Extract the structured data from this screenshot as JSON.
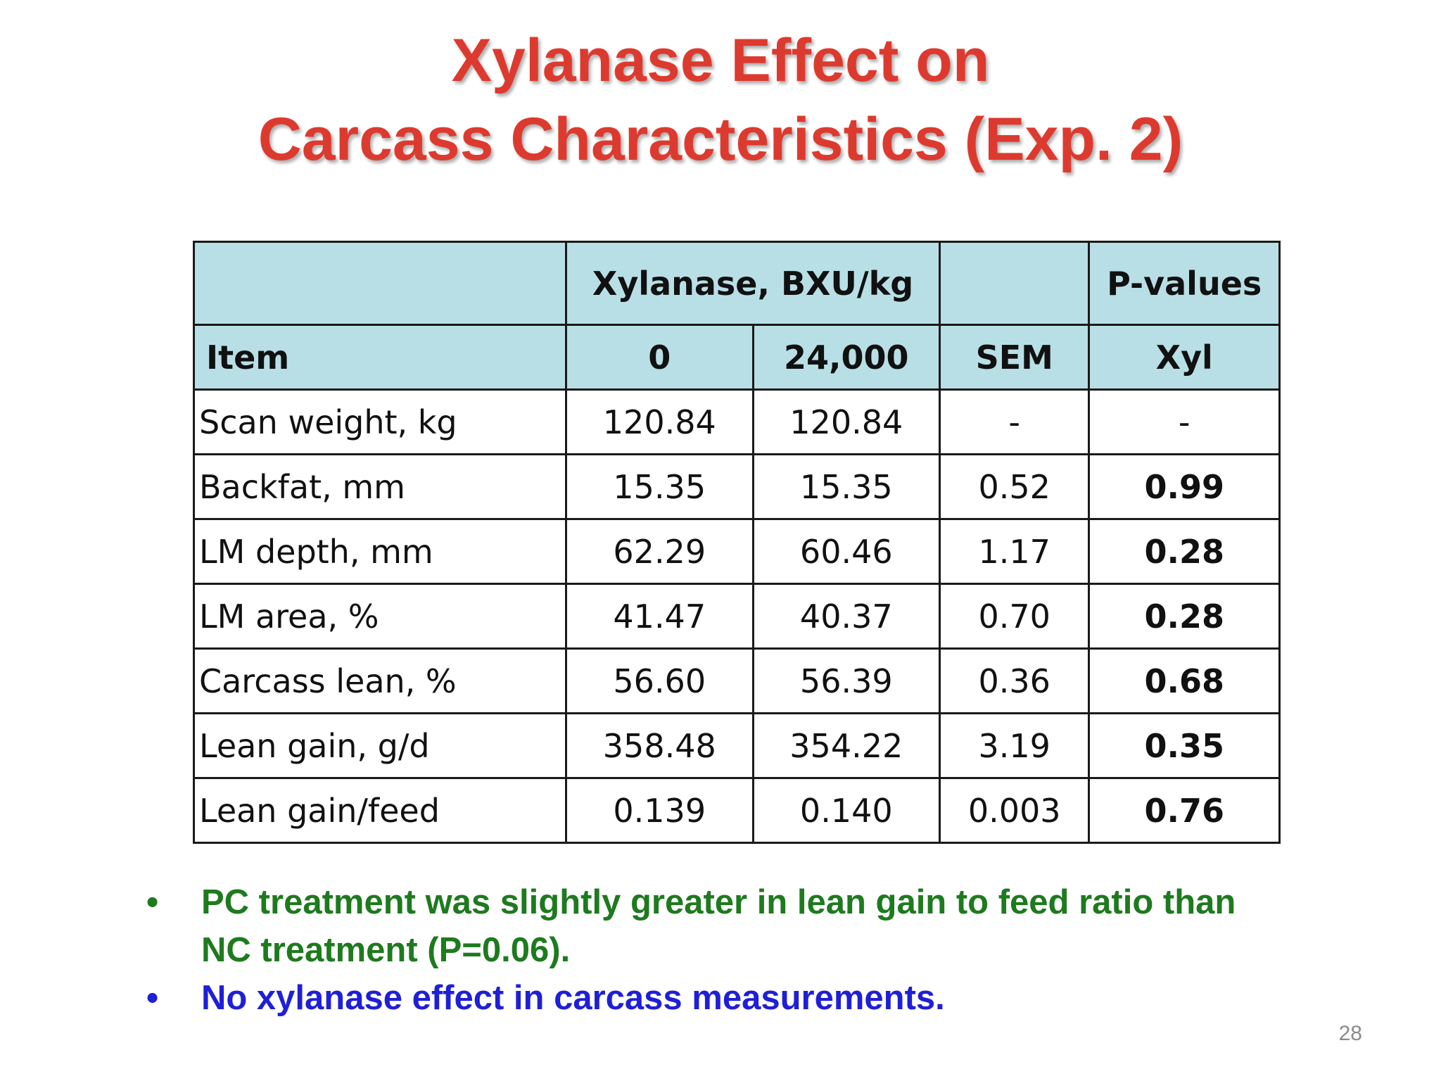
{
  "slide": {
    "title_line1": "Xylanase Effect on",
    "title_line2": "Carcass Characteristics (Exp. 2)",
    "page_number": "28"
  },
  "table": {
    "header_row1": {
      "group_xylanase": "Xylanase, BXU/kg",
      "group_pvalues": "P-values"
    },
    "header_row2": {
      "item": "Item",
      "dose_0": "0",
      "dose_24000": "24,000",
      "sem": "SEM",
      "xyl": "Xyl"
    },
    "rows": [
      {
        "item": "Scan weight, kg",
        "dose_0": "120.84",
        "dose_24000": "120.84",
        "sem": "-",
        "xyl": "-"
      },
      {
        "item": "Backfat, mm",
        "dose_0": "15.35",
        "dose_24000": "15.35",
        "sem": "0.52",
        "xyl": "0.99"
      },
      {
        "item": "LM depth, mm",
        "dose_0": "62.29",
        "dose_24000": "60.46",
        "sem": "1.17",
        "xyl": "0.28"
      },
      {
        "item": "LM area, %",
        "dose_0": "41.47",
        "dose_24000": "40.37",
        "sem": "0.70",
        "xyl": "0.28"
      },
      {
        "item": "Carcass lean, %",
        "dose_0": "56.60",
        "dose_24000": "56.39",
        "sem": "0.36",
        "xyl": "0.68"
      },
      {
        "item": "Lean gain, g/d",
        "dose_0": "358.48",
        "dose_24000": "354.22",
        "sem": "3.19",
        "xyl": "0.35"
      },
      {
        "item": "Lean gain/feed",
        "dose_0": "0.139",
        "dose_24000": "0.140",
        "sem": "0.003",
        "xyl": "0.76"
      }
    ]
  },
  "bullets": [
    {
      "marker": "•",
      "text": "PC treatment was slightly greater in lean gain to feed ratio than NC treatment (P=0.06).",
      "color": "#1e7a1e"
    },
    {
      "marker": "•",
      "text": "No xylanase effect in carcass measurements.",
      "color": "#1f1fd6"
    }
  ],
  "colors": {
    "title": "#dd3a2f",
    "header_fill": "#b9dfe6",
    "border": "#1a1a1a"
  }
}
